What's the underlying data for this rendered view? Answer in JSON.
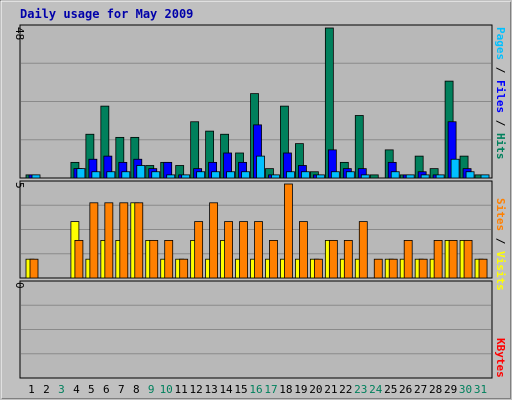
{
  "chart_data": [
    {
      "type": "bar",
      "title": "Daily usage for May 2009",
      "panel": "top",
      "ymax_label": "48",
      "ylim": [
        0,
        48
      ],
      "axis_label_parts": [
        "Pages",
        " / ",
        "Files",
        " / ",
        "Hits"
      ],
      "categories": [
        "1",
        "2",
        "3",
        "4",
        "5",
        "6",
        "7",
        "8",
        "9",
        "10",
        "11",
        "12",
        "13",
        "14",
        "15",
        "16",
        "17",
        "18",
        "19",
        "20",
        "21",
        "22",
        "23",
        "24",
        "25",
        "26",
        "27",
        "28",
        "29",
        "30",
        "31"
      ],
      "series": [
        {
          "name": "Hits",
          "color": "#00805c",
          "values": [
            1,
            0,
            0,
            5,
            14,
            23,
            13,
            13,
            4,
            5,
            4,
            18,
            15,
            14,
            8,
            27,
            3,
            23,
            11,
            2,
            48,
            5,
            20,
            1,
            9,
            1,
            7,
            3,
            31,
            7,
            1
          ]
        },
        {
          "name": "Files",
          "color": "#0000ff",
          "values": [
            1,
            0,
            0,
            3,
            6,
            7,
            5,
            6,
            3,
            5,
            1,
            3,
            5,
            8,
            5,
            17,
            1,
            8,
            4,
            1,
            9,
            3,
            3,
            0,
            5,
            1,
            2,
            1,
            18,
            3,
            0
          ]
        },
        {
          "name": "Pages",
          "color": "#00c0ff",
          "values": [
            1,
            0,
            0,
            3,
            2,
            2,
            2,
            4,
            2,
            1,
            1,
            2,
            2,
            2,
            2,
            7,
            1,
            2,
            2,
            1,
            2,
            2,
            1,
            0,
            2,
            1,
            1,
            1,
            6,
            2,
            1
          ]
        }
      ]
    },
    {
      "type": "bar",
      "panel": "middle",
      "ymax_label": "5",
      "ylim": [
        0,
        5
      ],
      "axis_label_parts": [
        "Sites",
        " / ",
        "Visits"
      ],
      "categories": [
        "1",
        "2",
        "3",
        "4",
        "5",
        "6",
        "7",
        "8",
        "9",
        "10",
        "11",
        "12",
        "13",
        "14",
        "15",
        "16",
        "17",
        "18",
        "19",
        "20",
        "21",
        "22",
        "23",
        "24",
        "25",
        "26",
        "27",
        "28",
        "29",
        "30",
        "31"
      ],
      "series": [
        {
          "name": "Visits",
          "color": "#ffff00",
          "values": [
            1,
            0,
            0,
            3,
            1,
            2,
            2,
            4,
            2,
            1,
            1,
            2,
            1,
            2,
            1,
            1,
            1,
            1,
            1,
            1,
            2,
            1,
            1,
            0,
            1,
            1,
            1,
            1,
            2,
            2,
            1
          ]
        },
        {
          "name": "Sites",
          "color": "#ff8000",
          "values": [
            1,
            0,
            0,
            2,
            4,
            4,
            4,
            4,
            2,
            2,
            1,
            3,
            4,
            3,
            3,
            3,
            2,
            5,
            3,
            1,
            2,
            2,
            3,
            1,
            1,
            2,
            1,
            2,
            2,
            2,
            1
          ]
        }
      ]
    },
    {
      "type": "bar",
      "panel": "bottom",
      "ymax_label": "0",
      "ylim": [
        0,
        1
      ],
      "axis_label_parts": [
        "KBytes"
      ],
      "categories": [
        "1",
        "2",
        "3",
        "4",
        "5",
        "6",
        "7",
        "8",
        "9",
        "10",
        "11",
        "12",
        "13",
        "14",
        "15",
        "16",
        "17",
        "18",
        "19",
        "20",
        "21",
        "22",
        "23",
        "24",
        "25",
        "26",
        "27",
        "28",
        "29",
        "30",
        "31"
      ],
      "series": [
        {
          "name": "KBytes",
          "color": "#ff0000",
          "values": [
            0,
            0,
            0,
            0,
            0,
            0,
            0,
            0,
            0,
            0,
            0,
            0,
            0,
            0,
            0,
            0,
            0,
            0,
            0,
            0,
            0,
            0,
            0,
            0,
            0,
            0,
            0,
            0,
            0,
            0,
            0
          ]
        }
      ]
    }
  ],
  "day_label_colors": [
    "#000000",
    "#000000",
    "#00805c",
    "#000000",
    "#000000",
    "#000000",
    "#000000",
    "#000000",
    "#00805c",
    "#00805c",
    "#000000",
    "#000000",
    "#000000",
    "#000000",
    "#000000",
    "#00805c",
    "#00805c",
    "#000000",
    "#000000",
    "#000000",
    "#000000",
    "#000000",
    "#00805c",
    "#00805c",
    "#000000",
    "#000000",
    "#000000",
    "#000000",
    "#000000",
    "#00805c",
    "#00805c"
  ],
  "label_colors": {
    "Pages": "#00c0ff",
    "Files": "#0000ff",
    "Hits": "#00805c",
    "Sites": "#ff8000",
    "Visits": "#ffff00",
    "KBytes": "#ff0000",
    "sep": "#000000"
  }
}
